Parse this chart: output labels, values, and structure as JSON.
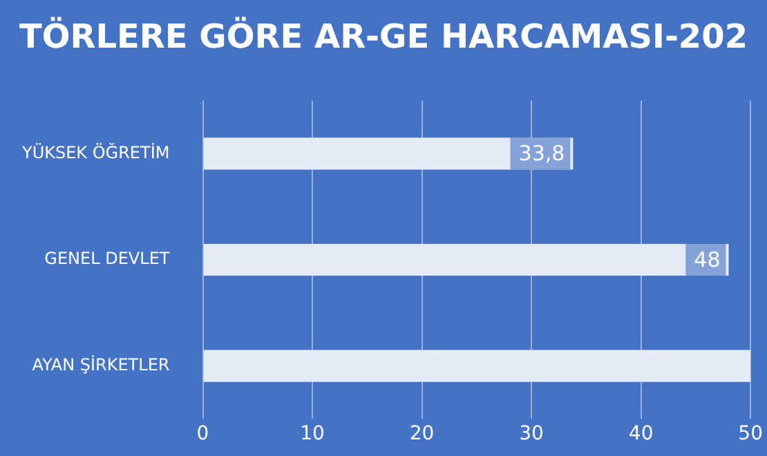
{
  "chart_data": {
    "type": "bar",
    "orientation": "horizontal",
    "title": "TÖRLERE GÖRE AR-GE HARCAMASI-202",
    "categories": [
      "YÜKSEK ÖĞRETİM",
      "GENEL DEVLET",
      "AYAN ŞİRKETLER"
    ],
    "values": [
      33.8,
      48,
      50
    ],
    "value_labels": [
      "33,8",
      "48",
      null
    ],
    "color": "#e4eaf6",
    "xlim": [
      0,
      50
    ],
    "xticks": [
      0,
      10,
      20,
      30,
      40,
      50
    ],
    "grid": "x",
    "legend": false
  }
}
